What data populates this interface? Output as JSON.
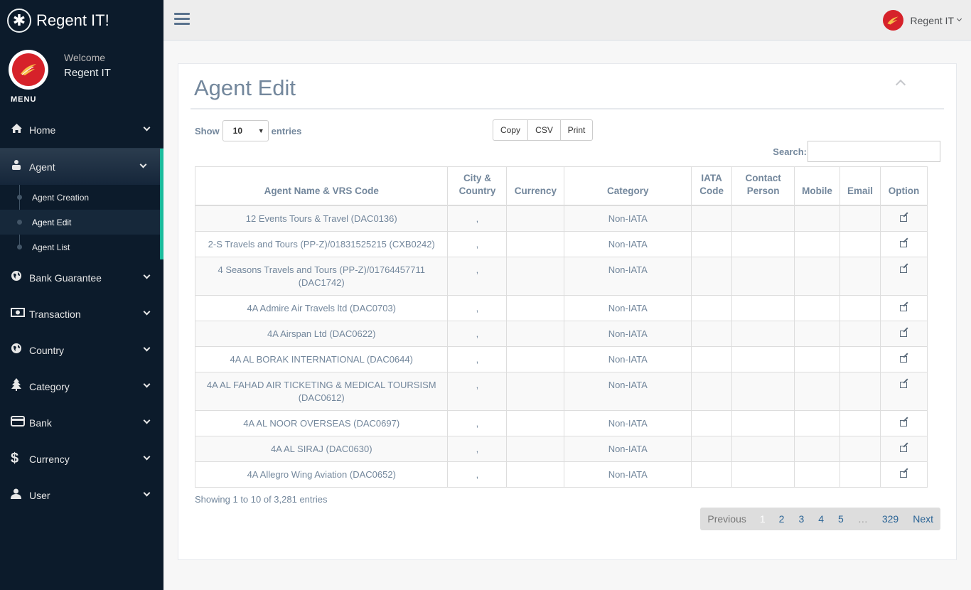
{
  "brand": {
    "logo_glyph": "✱",
    "title": "Regent IT!"
  },
  "profile": {
    "welcome": "Welcome",
    "name": "Regent IT"
  },
  "menu_title": "MENU",
  "nav": {
    "home": {
      "label": "Home",
      "icon": "home-icon"
    },
    "agent": {
      "label": "Agent",
      "icon": "users-icon"
    },
    "agent_sub": [
      "Agent Creation",
      "Agent Edit",
      "Agent List"
    ],
    "bank_guarantee": {
      "label": "Bank Guarantee",
      "icon": "globe-icon"
    },
    "transaction": {
      "label": "Transaction",
      "icon": "money-icon"
    },
    "country": {
      "label": "Country",
      "icon": "globe-icon"
    },
    "category": {
      "label": "Category",
      "icon": "tree-icon"
    },
    "bank": {
      "label": "Bank",
      "icon": "credit-card-icon"
    },
    "currency": {
      "label": "Currency",
      "icon": "dollar-icon"
    },
    "user": {
      "label": "User",
      "icon": "user-icon"
    }
  },
  "topbar": {
    "user_name": "Regent IT"
  },
  "page": {
    "title": "Agent Edit",
    "show_label": "Show",
    "entries_label": "entries",
    "page_size": "10",
    "buttons": {
      "copy": "Copy",
      "csv": "CSV",
      "print": "Print"
    },
    "search_label": "Search:",
    "search_value": "",
    "info": "Showing 1 to 10 of 3,281 entries"
  },
  "table": {
    "columns": [
      "Agent Name & VRS Code",
      "City & Country",
      "Currency",
      "Category",
      "IATA Code",
      "Contact Person",
      "Mobile",
      "Email",
      "Option"
    ],
    "rows": [
      {
        "name": "12 Events Tours & Travel (DAC0136)",
        "city": ",",
        "currency": "",
        "category": "Non-IATA",
        "iata": "",
        "contact": "",
        "mobile": "",
        "email": ""
      },
      {
        "name": "2-S Travels and Tours (PP-Z)/01831525215 (CXB0242)",
        "city": ",",
        "currency": "",
        "category": "Non-IATA",
        "iata": "",
        "contact": "",
        "mobile": "",
        "email": ""
      },
      {
        "name": "4 Seasons Travels and Tours (PP-Z)/01764457711 (DAC1742)",
        "city": ",",
        "currency": "",
        "category": "Non-IATA",
        "iata": "",
        "contact": "",
        "mobile": "",
        "email": ""
      },
      {
        "name": "4A Admire Air Travels ltd (DAC0703)",
        "city": ",",
        "currency": "",
        "category": "Non-IATA",
        "iata": "",
        "contact": "",
        "mobile": "",
        "email": ""
      },
      {
        "name": "4A Airspan Ltd (DAC0622)",
        "city": ",",
        "currency": "",
        "category": "Non-IATA",
        "iata": "",
        "contact": "",
        "mobile": "",
        "email": ""
      },
      {
        "name": "4A AL BORAK INTERNATIONAL (DAC0644)",
        "city": ",",
        "currency": "",
        "category": "Non-IATA",
        "iata": "",
        "contact": "",
        "mobile": "",
        "email": ""
      },
      {
        "name": "4A AL FAHAD AIR TICKETING & MEDICAL TOURSISM (DAC0612)",
        "city": ",",
        "currency": "",
        "category": "Non-IATA",
        "iata": "",
        "contact": "",
        "mobile": "",
        "email": ""
      },
      {
        "name": "4A AL NOOR OVERSEAS (DAC0697)",
        "city": ",",
        "currency": "",
        "category": "Non-IATA",
        "iata": "",
        "contact": "",
        "mobile": "",
        "email": ""
      },
      {
        "name": "4A AL SIRAJ (DAC0630)",
        "city": ",",
        "currency": "",
        "category": "Non-IATA",
        "iata": "",
        "contact": "",
        "mobile": "",
        "email": ""
      },
      {
        "name": "4A Allegro Wing Aviation (DAC0652)",
        "city": ",",
        "currency": "",
        "category": "Non-IATA",
        "iata": "",
        "contact": "",
        "mobile": "",
        "email": ""
      }
    ]
  },
  "pagination": {
    "previous": "Previous",
    "next": "Next",
    "pages": [
      "1",
      "2",
      "3",
      "4",
      "5",
      "…",
      "329"
    ],
    "current": "1"
  },
  "colors": {
    "sidebar": "#0c1b2b",
    "accent": "#1abb9c",
    "avatar_red": "#d6222a"
  }
}
